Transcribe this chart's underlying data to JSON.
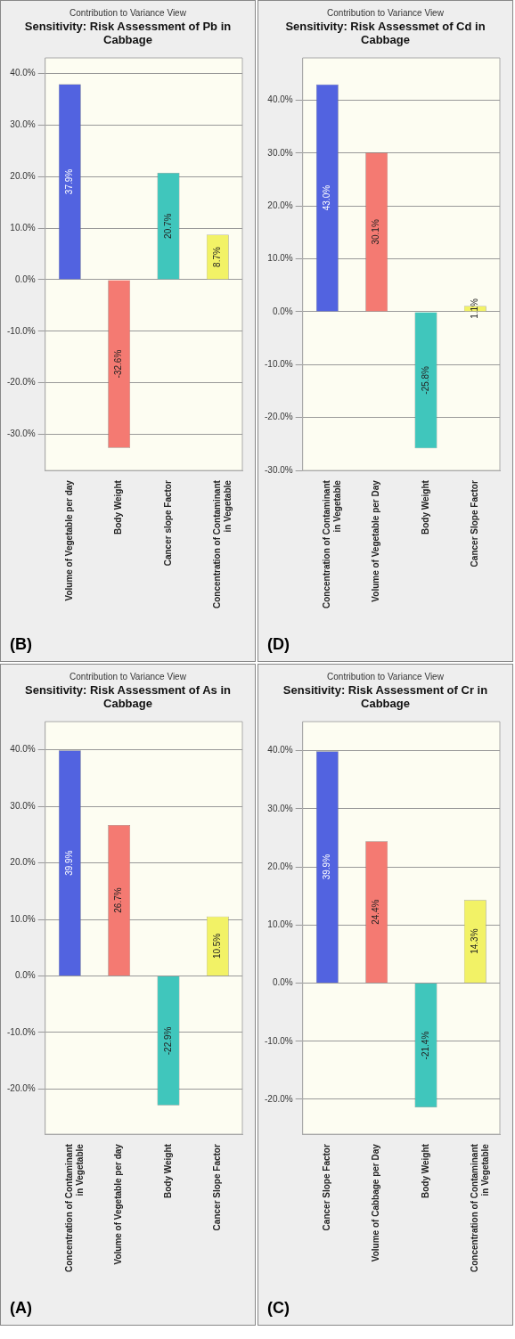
{
  "chart_data": [
    {
      "type": "bar",
      "subtitle": "Contribution to Variance View",
      "title": "Sensitivity: Risk Assessment of Pb in Cabbage",
      "annotations": [
        "(B)"
      ],
      "categories": [
        "Volume of Vegetable per day",
        "Body Weight",
        "Cancer slope Factor",
        "Concentration of Contaminant in Vegetable"
      ],
      "values": [
        37.9,
        -32.6,
        20.7,
        8.7
      ],
      "colors": [
        "#5263e0",
        "#f47a72",
        "#40c6bc",
        "#f2f266"
      ],
      "value_labels": [
        "37.9%",
        "-32.6%",
        "20.7%",
        "8.7%"
      ],
      "ylim": [
        -37,
        43
      ],
      "yticks": [
        {
          "value": -30,
          "label": "-30.0%"
        },
        {
          "value": -20,
          "label": "-20.0%"
        },
        {
          "value": -10,
          "label": "-10.0%"
        },
        {
          "value": 0,
          "label": "0.0%"
        },
        {
          "value": 10,
          "label": "10.0%"
        },
        {
          "value": 20,
          "label": "20.0%"
        },
        {
          "value": 30,
          "label": "30.0%"
        },
        {
          "value": 40,
          "label": "40.0%"
        }
      ],
      "grid": "y",
      "legend": false
    },
    {
      "type": "bar",
      "subtitle": "Contribution to Variance View",
      "title": "Sensitivity: Risk Assessmet of Cd in Cabbage",
      "annotations": [
        "(D)"
      ],
      "categories": [
        "Concentration of Contaminant in Vegetable",
        "Volume of Vegetable per Day",
        "Body Weight",
        "Cancer Slope Factor"
      ],
      "values": [
        43.0,
        30.1,
        -25.8,
        1.1
      ],
      "colors": [
        "#5263e0",
        "#f47a72",
        "#40c6bc",
        "#f2f266"
      ],
      "value_labels": [
        "43.0%",
        "30.1%",
        "-25.8%",
        "1.1%"
      ],
      "ylim": [
        -30,
        48
      ],
      "yticks": [
        {
          "value": -30,
          "label": "-30.0%"
        },
        {
          "value": -20,
          "label": "-20.0%"
        },
        {
          "value": -10,
          "label": "-10.0%"
        },
        {
          "value": 0,
          "label": "0.0%"
        },
        {
          "value": 10,
          "label": "10.0%"
        },
        {
          "value": 20,
          "label": "20.0%"
        },
        {
          "value": 30,
          "label": "30.0%"
        },
        {
          "value": 40,
          "label": "40.0%"
        }
      ],
      "grid": "y",
      "legend": false
    },
    {
      "type": "bar",
      "subtitle": "Contribution to Variance View",
      "title": "Sensitivity: Risk Assessment of As in Cabbage",
      "annotations": [
        "(A)"
      ],
      "categories": [
        "Concentration of Contaminant in Vegetable",
        "Volume of Vegetable per day",
        "Body Weight",
        "Cancer Slope Factor"
      ],
      "values": [
        39.9,
        26.7,
        -22.9,
        10.5
      ],
      "colors": [
        "#5263e0",
        "#f47a72",
        "#40c6bc",
        "#f2f266"
      ],
      "value_labels": [
        "39.9%",
        "26.7%",
        "-22.9%",
        "10.5%"
      ],
      "ylim": [
        -28,
        45
      ],
      "yticks": [
        {
          "value": -20,
          "label": "-20.0%"
        },
        {
          "value": -10,
          "label": "-10.0%"
        },
        {
          "value": 0,
          "label": "0.0%"
        },
        {
          "value": 10,
          "label": "10.0%"
        },
        {
          "value": 20,
          "label": "20.0%"
        },
        {
          "value": 30,
          "label": "30.0%"
        },
        {
          "value": 40,
          "label": "40.0%"
        }
      ],
      "grid": "y",
      "legend": false
    },
    {
      "type": "bar",
      "subtitle": "Contribution to Variance View",
      "title": "Sensitivity: Risk Assessment of Cr in Cabbage",
      "annotations": [
        "(C)"
      ],
      "categories": [
        "Cancer Slope Factor",
        "Volume of Cabbage per Day",
        "Body Weight",
        "Concentration of Contaminant in Vegetable"
      ],
      "values": [
        39.9,
        24.4,
        -21.4,
        14.3
      ],
      "colors": [
        "#5263e0",
        "#f47a72",
        "#40c6bc",
        "#f2f266"
      ],
      "value_labels": [
        "39.9%",
        "24.4%",
        "-21.4%",
        "14.3%"
      ],
      "ylim": [
        -26,
        45
      ],
      "yticks": [
        {
          "value": -20,
          "label": "-20.0%"
        },
        {
          "value": -10,
          "label": "-10.0%"
        },
        {
          "value": 0,
          "label": "0.0%"
        },
        {
          "value": 10,
          "label": "10.0%"
        },
        {
          "value": 20,
          "label": "20.0%"
        },
        {
          "value": 30,
          "label": "30.0%"
        },
        {
          "value": 40,
          "label": "40.0%"
        }
      ],
      "grid": "y",
      "legend": false
    }
  ]
}
